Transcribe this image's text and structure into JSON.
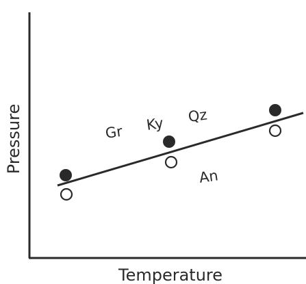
{
  "axes": {
    "x_label": "Temperature",
    "y_label": "Pressure"
  },
  "labels": {
    "garnet": "Gr",
    "kyanite": "Ky",
    "quartz": "Qz",
    "anorthite": "An"
  },
  "markers": {
    "filled_count": 3,
    "open_count": 3
  },
  "colors": {
    "ink": "#2a2a2a",
    "background": "#ffffff"
  }
}
